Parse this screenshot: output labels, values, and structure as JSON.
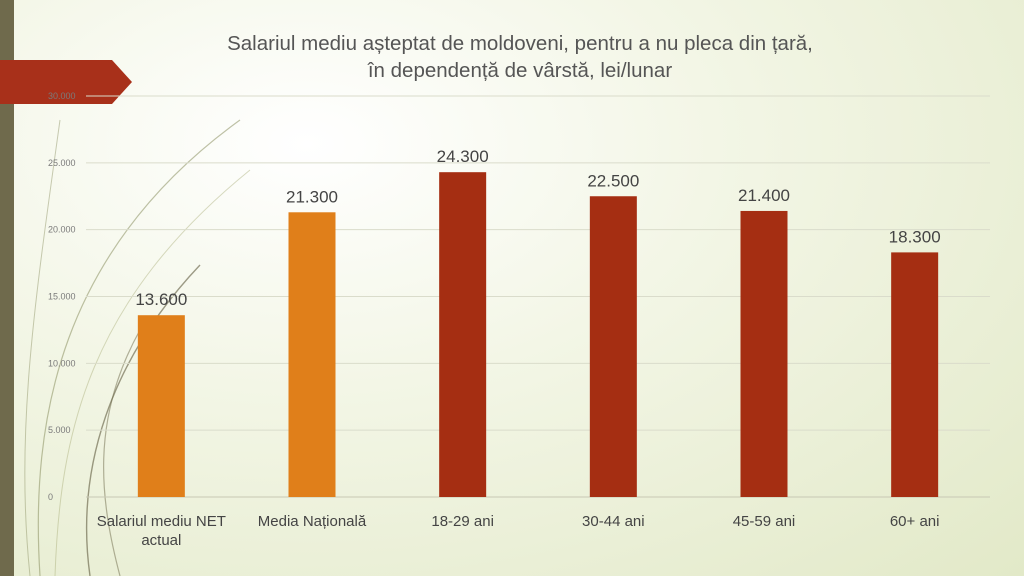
{
  "title": {
    "line1": "Salariul mediu așteptat de moldoveni, pentru a nu pleca din țară,",
    "line2": "în dependență de vârstă, lei/lunar"
  },
  "colors": {
    "accent_orange": "#e07f1a",
    "accent_red": "#a52e12",
    "stripe": "#6f6a4c",
    "arrow": "#a8301a"
  },
  "chart_data": {
    "type": "bar",
    "title": "Salariul mediu așteptat de moldoveni, pentru a nu pleca din țară, în dependență de vârstă, lei/lunar",
    "categories": [
      [
        "Salariul mediu NET",
        "actual"
      ],
      [
        "Media Națională"
      ],
      [
        "18-29 ani"
      ],
      [
        "30-44 ani"
      ],
      [
        "45-59 ani"
      ],
      [
        "60+ ani"
      ]
    ],
    "values": [
      13600,
      21300,
      24300,
      22500,
      21400,
      18300
    ],
    "value_labels": [
      "13.600",
      "21.300",
      "24.300",
      "22.500",
      "21.400",
      "18.300"
    ],
    "bar_colors": [
      "#e07f1a",
      "#e07f1a",
      "#a52e12",
      "#a52e12",
      "#a52e12",
      "#a52e12"
    ],
    "yticks": [
      0,
      5000,
      10000,
      15000,
      20000,
      25000,
      30000
    ],
    "ytick_labels": [
      "0",
      "5.000",
      "10.000",
      "15.000",
      "20.000",
      "25.000",
      "30.000"
    ],
    "ylim": [
      0,
      30000
    ],
    "grid": true,
    "legend": "none"
  }
}
